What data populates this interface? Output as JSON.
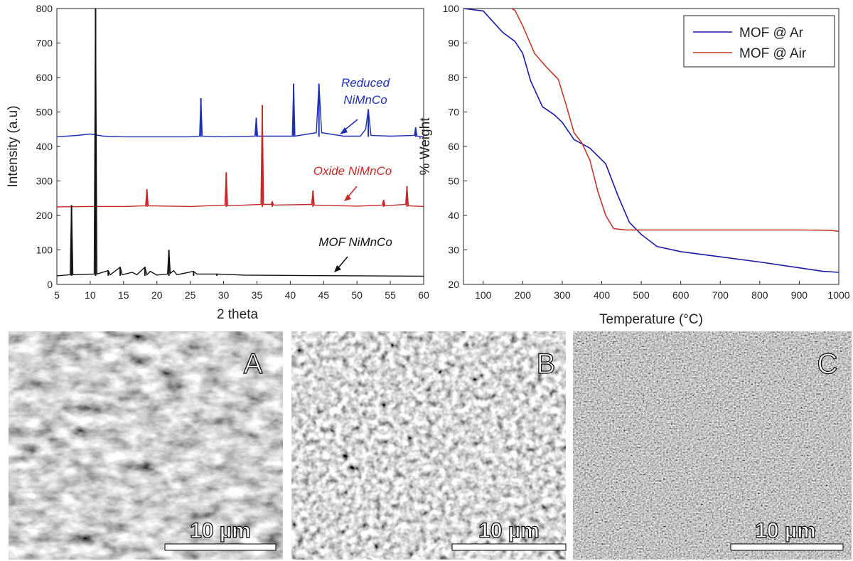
{
  "chart_data": [
    {
      "type": "line",
      "xlabel": "2 theta",
      "ylabel": "Intensity (a.u)",
      "xlim": [
        5,
        60
      ],
      "ylim": [
        0,
        800
      ],
      "xticks": [
        "5",
        "10",
        "15",
        "20",
        "25",
        "30",
        "35",
        "40",
        "45",
        "50",
        "55",
        "60"
      ],
      "yticks": [
        "0",
        "100",
        "200",
        "300",
        "400",
        "500",
        "600",
        "700",
        "800"
      ],
      "grid": false,
      "series": [
        {
          "name": "Reduced NiMnCo",
          "color": "#1f2fb4",
          "baseline": 428,
          "peaks": [
            [
              26.6,
              540
            ],
            [
              34.9,
              483
            ],
            [
              40.5,
              582
            ],
            [
              44.3,
              582
            ],
            [
              51.7,
              508
            ],
            [
              58.8,
              455
            ]
          ],
          "points": [
            [
              5,
              428
            ],
            [
              8,
              432
            ],
            [
              10,
              436
            ],
            [
              12,
              430
            ],
            [
              15,
              428
            ],
            [
              20,
              428
            ],
            [
              25,
              428
            ],
            [
              26.4,
              430
            ],
            [
              26.6,
              540
            ],
            [
              26.8,
              430
            ],
            [
              30,
              428
            ],
            [
              34.7,
              430
            ],
            [
              34.9,
              483
            ],
            [
              35.1,
              430
            ],
            [
              40.3,
              430
            ],
            [
              40.5,
              582
            ],
            [
              40.7,
              430
            ],
            [
              43.9,
              440
            ],
            [
              44.3,
              582
            ],
            [
              44.7,
              440
            ],
            [
              48,
              430
            ],
            [
              50.5,
              430
            ],
            [
              51.3,
              450
            ],
            [
              51.7,
              508
            ],
            [
              52.1,
              432
            ],
            [
              55,
              430
            ],
            [
              58.6,
              432
            ],
            [
              58.8,
              455
            ],
            [
              59,
              430
            ],
            [
              60,
              428
            ]
          ]
        },
        {
          "name": "Oxide NiMnCo",
          "color": "#c62828",
          "baseline": 225,
          "peaks": [
            [
              18.5,
              276
            ],
            [
              30.4,
              325
            ],
            [
              35.8,
              520
            ],
            [
              37.3,
              240
            ],
            [
              43.4,
              272
            ],
            [
              54.0,
              245
            ],
            [
              57.5,
              285
            ]
          ],
          "points": [
            [
              5,
              225
            ],
            [
              10,
              226
            ],
            [
              15,
              226
            ],
            [
              18.3,
              228
            ],
            [
              18.5,
              276
            ],
            [
              18.7,
              228
            ],
            [
              25,
              226
            ],
            [
              30.2,
              230
            ],
            [
              30.4,
              325
            ],
            [
              30.6,
              228
            ],
            [
              35.6,
              232
            ],
            [
              35.8,
              520
            ],
            [
              36,
              232
            ],
            [
              37.1,
              232
            ],
            [
              37.3,
              240
            ],
            [
              37.5,
              230
            ],
            [
              43.2,
              232
            ],
            [
              43.4,
              272
            ],
            [
              43.6,
              230
            ],
            [
              50,
              227
            ],
            [
              53.8,
              230
            ],
            [
              54,
              245
            ],
            [
              54.2,
              228
            ],
            [
              57.3,
              232
            ],
            [
              57.5,
              285
            ],
            [
              57.7,
              228
            ],
            [
              60,
              226
            ]
          ]
        },
        {
          "name": "MOF NiMnCo",
          "color": "#111111",
          "baseline": 25,
          "peaks": [
            [
              7.2,
              230
            ],
            [
              10.8,
              800
            ],
            [
              12.7,
              40
            ],
            [
              14.5,
              50
            ],
            [
              18.2,
              50
            ],
            [
              21.8,
              100
            ],
            [
              25.5,
              38
            ],
            [
              29,
              30
            ]
          ],
          "points": [
            [
              5,
              25
            ],
            [
              7,
              28
            ],
            [
              7.2,
              230
            ],
            [
              7.4,
              28
            ],
            [
              10.6,
              30
            ],
            [
              10.8,
              800
            ],
            [
              11,
              30
            ],
            [
              12.7,
              40
            ],
            [
              13,
              28
            ],
            [
              14.5,
              50
            ],
            [
              14.8,
              28
            ],
            [
              16.3,
              35
            ],
            [
              17,
              28
            ],
            [
              18.2,
              50
            ],
            [
              18.5,
              28
            ],
            [
              19,
              38
            ],
            [
              20,
              27
            ],
            [
              21.6,
              30
            ],
            [
              21.8,
              100
            ],
            [
              22,
              32
            ],
            [
              22.5,
              40
            ],
            [
              23,
              28
            ],
            [
              25.5,
              38
            ],
            [
              26,
              30
            ],
            [
              29,
              30
            ],
            [
              33,
              27
            ],
            [
              40,
              26
            ],
            [
              50,
              25
            ],
            [
              60,
              24
            ]
          ]
        }
      ],
      "annotations": [
        "Reduced NiMnCo",
        "Oxide NiMnCo",
        "MOF NiMnCo"
      ]
    },
    {
      "type": "line",
      "xlabel": "Temperature (°C)",
      "ylabel": "% Weight",
      "xlim": [
        50,
        1000
      ],
      "ylim": [
        20,
        100
      ],
      "xticks": [
        "100",
        "200",
        "300",
        "400",
        "500",
        "600",
        "700",
        "800",
        "900",
        "1000"
      ],
      "yticks": [
        "20",
        "30",
        "40",
        "50",
        "60",
        "70",
        "80",
        "90",
        "100"
      ],
      "legend_position": "top-right",
      "grid": false,
      "series": [
        {
          "name": "MOF @ Ar",
          "color": "#1a1aa6",
          "points": [
            [
              50,
              100
            ],
            [
              100,
              99.3
            ],
            [
              150,
              93
            ],
            [
              180,
              90.5
            ],
            [
              200,
              87
            ],
            [
              220,
              79
            ],
            [
              250,
              71.5
            ],
            [
              280,
              69.2
            ],
            [
              300,
              67
            ],
            [
              330,
              62
            ],
            [
              370,
              59.5
            ],
            [
              410,
              55
            ],
            [
              440,
              46
            ],
            [
              470,
              38
            ],
            [
              500,
              34.5
            ],
            [
              540,
              31
            ],
            [
              600,
              29.5
            ],
            [
              700,
              28
            ],
            [
              800,
              26.5
            ],
            [
              900,
              24.8
            ],
            [
              960,
              23.8
            ],
            [
              1000,
              23.5
            ]
          ]
        },
        {
          "name": "MOF @ Air",
          "color": "#c0392b",
          "points": [
            [
              50,
              100.5
            ],
            [
              100,
              100.8
            ],
            [
              130,
              100.9
            ],
            [
              160,
              100.7
            ],
            [
              180,
              99.5
            ],
            [
              200,
              95
            ],
            [
              230,
              87
            ],
            [
              260,
              83
            ],
            [
              290,
              79.5
            ],
            [
              310,
              72
            ],
            [
              330,
              64
            ],
            [
              350,
              61
            ],
            [
              370,
              56
            ],
            [
              390,
              47
            ],
            [
              410,
              40
            ],
            [
              430,
              36.2
            ],
            [
              460,
              35.8
            ],
            [
              500,
              35.8
            ],
            [
              700,
              35.8
            ],
            [
              900,
              35.8
            ],
            [
              980,
              35.7
            ],
            [
              1000,
              35.4
            ]
          ]
        }
      ]
    }
  ],
  "micrographs": [
    {
      "label": "A",
      "scale_text": "10 µm"
    },
    {
      "label": "B",
      "scale_text": "10 µm"
    },
    {
      "label": "C",
      "scale_text": "10 µm"
    }
  ]
}
